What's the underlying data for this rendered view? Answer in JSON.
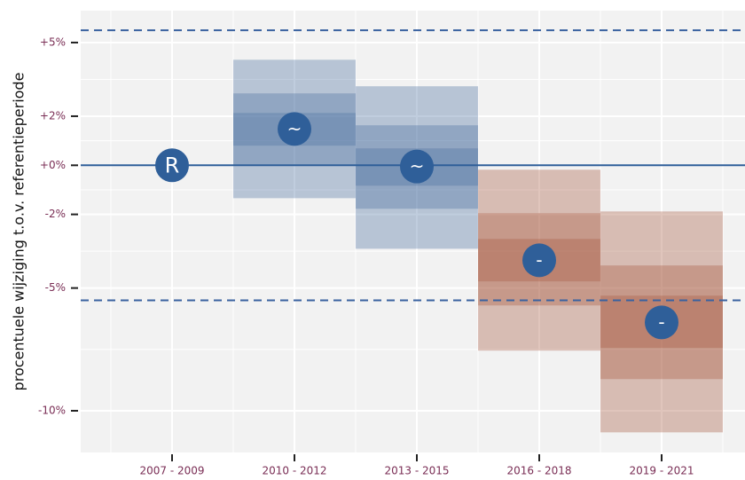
{
  "chart_data": {
    "type": "interval",
    "y_label": "procentuele wijziging t.o.v. referentieperiode",
    "categories": [
      "2007 - 2009",
      "2010 - 2012",
      "2013 - 2015",
      "2016 - 2018",
      "2019 - 2021"
    ],
    "values": [
      0,
      1.48,
      -0.05,
      -3.87,
      -6.4
    ],
    "symbols": [
      "R",
      "~",
      "~",
      "-",
      "-"
    ],
    "colors": [
      null,
      "#4a70a0",
      "#4a70a0",
      "#a65a40",
      "#a65a40"
    ],
    "outer_low": [
      null,
      -1.34,
      -3.4,
      -7.55,
      -10.88
    ],
    "outer_high": [
      null,
      4.3,
      3.22,
      -0.18,
      -1.88
    ],
    "middle_low": [
      null,
      0,
      -1.77,
      -5.71,
      -8.71
    ],
    "middle_high": [
      null,
      2.93,
      1.63,
      -1.95,
      -4.08
    ],
    "inner_low": [
      null,
      0.8,
      -0.83,
      -4.73,
      -7.44
    ],
    "inner_high": [
      null,
      2.13,
      0.69,
      -3.0,
      -5.31
    ],
    "reference_line": 0,
    "thresholds": [
      5.5,
      -5.5
    ],
    "marker_color": "#2f5f99",
    "ylim": [
      -11.7,
      6.3
    ],
    "yticks": [
      {
        "value": 5,
        "label": "+5%"
      },
      {
        "value": 2,
        "label": "+2%"
      },
      {
        "value": 0,
        "label": "+0%"
      },
      {
        "value": -2,
        "label": "-2%"
      },
      {
        "value": -5,
        "label": "-5%"
      },
      {
        "value": -10,
        "label": "-10%"
      }
    ],
    "grid": true
  }
}
